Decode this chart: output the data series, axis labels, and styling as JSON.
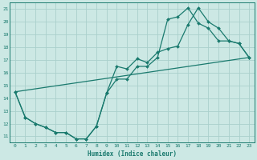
{
  "xlabel": "Humidex (Indice chaleur)",
  "xlim": [
    -0.5,
    23.5
  ],
  "ylim": [
    10.5,
    21.5
  ],
  "xticks": [
    0,
    1,
    2,
    3,
    4,
    5,
    6,
    7,
    8,
    9,
    10,
    11,
    12,
    13,
    14,
    15,
    16,
    17,
    18,
    19,
    20,
    21,
    22,
    23
  ],
  "yticks": [
    11,
    12,
    13,
    14,
    15,
    16,
    17,
    18,
    19,
    20,
    21
  ],
  "bg_color": "#cce8e4",
  "grid_color": "#aad0cc",
  "line_color": "#1a7a6e",
  "line1_x": [
    0,
    1,
    2,
    3,
    4,
    5,
    6,
    7,
    8,
    9,
    10,
    11,
    12,
    13,
    14,
    15,
    16,
    17,
    18,
    19,
    20,
    21,
    22,
    23
  ],
  "line1_y": [
    14.5,
    12.5,
    12.0,
    11.7,
    11.3,
    11.3,
    10.8,
    10.8,
    11.8,
    14.4,
    16.5,
    16.3,
    17.1,
    16.8,
    17.6,
    17.9,
    18.1,
    19.8,
    21.1,
    20.0,
    19.5,
    18.5,
    18.3,
    17.2
  ],
  "line2_x": [
    0,
    1,
    2,
    3,
    4,
    5,
    6,
    7,
    8,
    9,
    10,
    11,
    12,
    13,
    14,
    15,
    16,
    17,
    18,
    19,
    20,
    21,
    22,
    23
  ],
  "line2_y": [
    14.5,
    12.5,
    12.0,
    11.7,
    11.3,
    11.3,
    10.8,
    10.8,
    11.8,
    14.4,
    15.5,
    15.5,
    16.5,
    16.5,
    17.2,
    20.2,
    20.4,
    21.1,
    19.9,
    19.5,
    18.5,
    18.5,
    18.3,
    17.2
  ],
  "line3_x": [
    0,
    23
  ],
  "line3_y": [
    14.5,
    17.2
  ]
}
